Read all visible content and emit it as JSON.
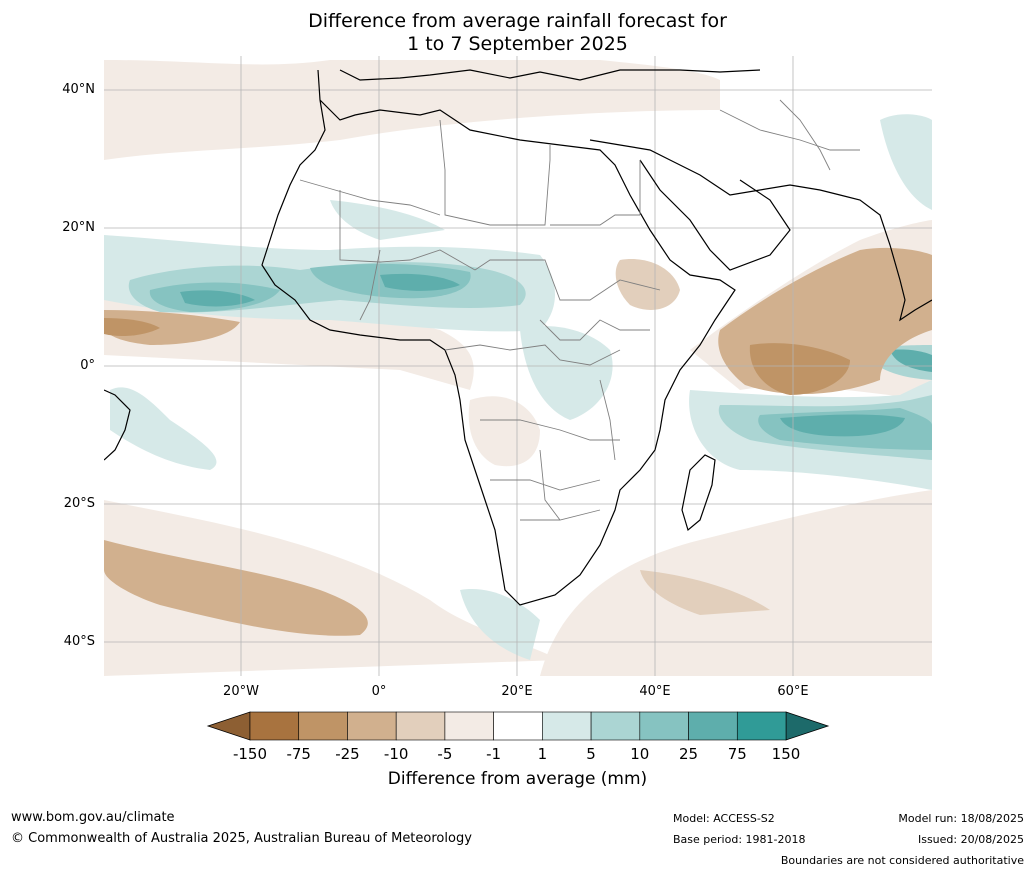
{
  "title": {
    "line1": "Difference from average rainfall forecast for",
    "line2": "1 to 7 September 2025"
  },
  "lat_labels": [
    "40°N",
    "20°N",
    "0°",
    "20°S",
    "40°S"
  ],
  "lon_labels": [
    "20°W",
    "0°",
    "20°E",
    "40°E",
    "60°E"
  ],
  "colorbar": {
    "labels": [
      "-150",
      "-75",
      "-25",
      "-10",
      "-5",
      "-1",
      "1",
      "5",
      "10",
      "25",
      "75",
      "150"
    ],
    "colors": [
      "#a8733f",
      "#bf9466",
      "#d1b08e",
      "#e2cfbc",
      "#f3ebe5",
      "#ffffff",
      "#d6e9e8",
      "#abd5d3",
      "#86c3c1",
      "#5eaeac",
      "#309b97",
      "#287c7b"
    ],
    "under_color": "#8d5f33",
    "title": "Difference from average (mm)"
  },
  "footer": {
    "url": "www.bom.gov.au/climate",
    "copyright": "© Commonwealth of Australia 2025, Australian Bureau of Meteorology",
    "model": "Model: ACCESS-S2",
    "base_period": "Base period: 1981-2018",
    "model_run": "Model run: 18/08/2025",
    "issued": "Issued: 20/08/2025",
    "disclaimer": "Boundaries are not considered authoritative"
  }
}
